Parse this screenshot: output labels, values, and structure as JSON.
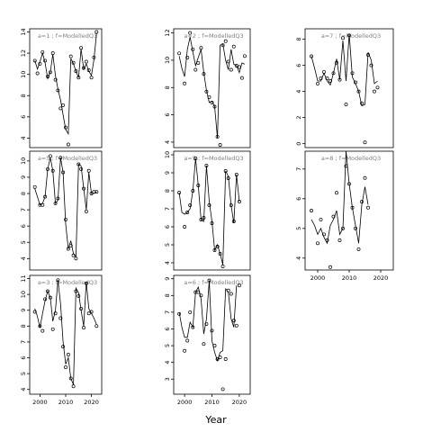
{
  "figure": {
    "xlabel": "Year"
  },
  "chart_data": [
    {
      "type": "line",
      "title": "a=1 ; f=ModelledQ3",
      "xlim": [
        1996,
        2024
      ],
      "ylim": [
        3.1,
        14.3
      ],
      "yticks": [
        4,
        6,
        8,
        10,
        12,
        14
      ],
      "xticks": [],
      "x": [
        1998,
        1999,
        2000,
        2001,
        2002,
        2003,
        2004,
        2005,
        2006,
        2007,
        2008,
        2009,
        2010,
        2011,
        2012,
        2013,
        2014,
        2015,
        2016,
        2017,
        2018,
        2019,
        2020,
        2021,
        2022
      ],
      "series": [
        {
          "style": "line",
          "values": [
            11.3,
            10.5,
            11.2,
            12.0,
            11.1,
            9.6,
            10.2,
            11.9,
            9.9,
            8.6,
            7.6,
            6.2,
            4.8,
            4.4,
            11.5,
            11.0,
            10.3,
            9.7,
            12.4,
            10.5,
            11.0,
            10.3,
            9.9,
            11.4,
            13.9
          ]
        },
        {
          "style": "points",
          "values": [
            11.3,
            10.1,
            11.0,
            12.1,
            11.3,
            9.8,
            10.2,
            12.0,
            9.5,
            8.5,
            6.8,
            7.1,
            5.0,
            3.4,
            11.7,
            11.1,
            10.3,
            9.7,
            12.5,
            10.6,
            11.2,
            10.4,
            9.7,
            11.6,
            14.0
          ]
        }
      ]
    },
    {
      "type": "line",
      "title": "a=2 ; f=ModelledQ3",
      "xlim": [
        1996,
        2024
      ],
      "ylim": [
        3.6,
        12.3
      ],
      "yticks": [
        4,
        6,
        8,
        10,
        12
      ],
      "xticks": [],
      "x": [
        1998,
        1999,
        2000,
        2001,
        2002,
        2003,
        2004,
        2005,
        2006,
        2007,
        2008,
        2009,
        2010,
        2011,
        2012,
        2013,
        2014,
        2015,
        2016,
        2017,
        2018,
        2019,
        2020,
        2021,
        2022
      ],
      "series": [
        {
          "style": "line",
          "values": [
            10.3,
            9.4,
            8.8,
            10.8,
            11.7,
            10.6,
            9.6,
            10.2,
            10.8,
            9.1,
            7.8,
            6.9,
            7.0,
            6.6,
            4.3,
            11.1,
            11.2,
            10.0,
            9.3,
            10.8,
            9.7,
            9.6,
            9.1,
            9.8,
            9.7
          ]
        },
        {
          "style": "points",
          "values": [
            10.5,
            null,
            8.3,
            10.2,
            12.0,
            10.8,
            9.3,
            9.8,
            10.9,
            9.0,
            7.7,
            7.3,
            6.9,
            6.6,
            4.4,
            3.8,
            11.1,
            11.4,
            9.9,
            9.3,
            11.0,
            9.6,
            9.5,
            8.7,
            10.3
          ]
        }
      ]
    },
    {
      "type": "line",
      "title": "a=3 ; f=ModelledQ3",
      "xlim": [
        1996,
        2024
      ],
      "ylim": [
        3.7,
        11.2
      ],
      "yticks": [
        4,
        5,
        6,
        7,
        8,
        9,
        10,
        11
      ],
      "xticks": [
        2000,
        2010,
        2020
      ],
      "x": [
        1998,
        1999,
        2000,
        2001,
        2002,
        2003,
        2004,
        2005,
        2006,
        2007,
        2008,
        2009,
        2010,
        2011,
        2012,
        2013,
        2014,
        2015,
        2016,
        2017,
        2018,
        2019,
        2020,
        2021,
        2022
      ],
      "series": [
        {
          "style": "line",
          "values": [
            9.1,
            8.6,
            7.9,
            8.8,
            9.6,
            10.2,
            9.8,
            8.3,
            9.0,
            10.9,
            9.4,
            7.0,
            5.6,
            6.0,
            4.7,
            4.3,
            10.4,
            10.1,
            9.0,
            8.0,
            10.8,
            9.1,
            8.8,
            8.5,
            8.1
          ]
        },
        {
          "style": "points",
          "values": [
            8.9,
            null,
            8.0,
            7.7,
            9.7,
            10.2,
            9.8,
            7.8,
            8.8,
            10.9,
            8.5,
            6.7,
            5.4,
            6.2,
            4.7,
            4.2,
            10.2,
            9.9,
            9.1,
            7.9,
            10.7,
            8.8,
            8.9,
            null,
            8.0
          ]
        }
      ]
    },
    {
      "type": "line",
      "title": "a=5 ; f=ModelledQ3",
      "xlim": [
        1996,
        2024
      ],
      "ylim": [
        3.3,
        10.6
      ],
      "yticks": [
        4,
        5,
        6,
        7,
        8,
        9,
        10
      ],
      "xticks": [],
      "x": [
        1998,
        1999,
        2000,
        2001,
        2002,
        2003,
        2004,
        2005,
        2006,
        2007,
        2008,
        2009,
        2010,
        2011,
        2012,
        2013,
        2014,
        2015,
        2016,
        2017,
        2018,
        2019,
        2020,
        2021,
        2022
      ],
      "series": [
        {
          "style": "line",
          "values": [
            8.3,
            7.8,
            7.3,
            7.4,
            7.8,
            9.5,
            10.2,
            9.4,
            7.4,
            7.6,
            10.2,
            9.3,
            6.1,
            4.6,
            5.1,
            4.3,
            4.1,
            9.8,
            9.7,
            8.3,
            7.0,
            9.3,
            8.0,
            8.0,
            8.1
          ]
        },
        {
          "style": "points",
          "values": [
            8.4,
            null,
            7.3,
            7.3,
            7.8,
            9.5,
            10.3,
            9.4,
            7.4,
            7.7,
            10.2,
            9.3,
            6.4,
            4.6,
            4.8,
            4.2,
            4.0,
            9.8,
            9.5,
            8.3,
            6.9,
            9.4,
            8.0,
            8.1,
            8.1
          ]
        }
      ]
    },
    {
      "type": "line",
      "title": "a=5 ; f=ModelledQ3",
      "xlim": [
        1996,
        2024
      ],
      "ylim": [
        3.6,
        10.2
      ],
      "yticks": [
        4,
        5,
        6,
        7,
        8,
        9,
        10
      ],
      "xticks": [],
      "x": [
        1998,
        1999,
        2000,
        2001,
        2002,
        2003,
        2004,
        2005,
        2006,
        2007,
        2008,
        2009,
        2010,
        2011,
        2012,
        2013,
        2014,
        2015,
        2016,
        2017,
        2018,
        2019,
        2020,
        2021,
        2022
      ],
      "series": [
        {
          "style": "line",
          "values": [
            7.9,
            6.8,
            6.7,
            6.8,
            7.0,
            8.0,
            9.8,
            8.3,
            6.4,
            6.3,
            9.4,
            7.4,
            6.3,
            4.7,
            5.0,
            4.5,
            3.9,
            9.1,
            8.8,
            7.2,
            6.2,
            8.9,
            7.4,
            null,
            null
          ]
        },
        {
          "style": "points",
          "values": [
            7.9,
            null,
            6.0,
            6.8,
            7.2,
            8.0,
            9.8,
            8.3,
            6.4,
            6.5,
            9.4,
            7.2,
            6.2,
            4.7,
            4.9,
            4.5,
            3.8,
            9.1,
            8.7,
            7.2,
            6.3,
            8.9,
            7.4,
            null,
            null
          ]
        }
      ]
    },
    {
      "type": "line",
      "title": "a=6 ; f=ModelledQ3",
      "xlim": [
        1996,
        2024
      ],
      "ylim": [
        2.1,
        9.2
      ],
      "yticks": [
        3,
        4,
        5,
        6,
        7,
        8,
        9
      ],
      "xticks": [
        2000,
        2010,
        2020
      ],
      "x": [
        1998,
        1999,
        2000,
        2001,
        2002,
        2003,
        2004,
        2005,
        2006,
        2007,
        2008,
        2009,
        2010,
        2011,
        2012,
        2013,
        2014,
        2015,
        2016,
        2017,
        2018,
        2019,
        2020,
        2021,
        2022
      ],
      "series": [
        {
          "style": "line",
          "values": [
            7.0,
            6.1,
            5.5,
            5.5,
            6.4,
            6.1,
            8.2,
            8.5,
            7.8,
            5.7,
            6.6,
            8.9,
            5.3,
            4.6,
            4.1,
            4.6,
            4.7,
            8.4,
            8.2,
            6.6,
            6.1,
            8.6,
            null,
            null,
            null
          ]
        },
        {
          "style": "points",
          "values": [
            6.9,
            null,
            4.7,
            5.3,
            7.0,
            6.1,
            8.2,
            8.2,
            8.0,
            5.1,
            6.3,
            8.9,
            5.9,
            5.0,
            4.2,
            4.3,
            2.4,
            4.2,
            8.3,
            8.1,
            6.5,
            6.2,
            8.6,
            null,
            null
          ]
        }
      ]
    },
    {
      "type": "line",
      "title": "a=7 ; f=ModelledQ3",
      "xlim": [
        1996,
        2024
      ],
      "ylim": [
        -0.3,
        8.8
      ],
      "yticks": [
        0,
        2,
        4,
        6,
        8
      ],
      "xticks": [],
      "x": [
        1998,
        1999,
        2000,
        2001,
        2002,
        2003,
        2004,
        2005,
        2006,
        2007,
        2008,
        2009,
        2010,
        2011,
        2012,
        2013,
        2014,
        2015,
        2016,
        2017,
        2018,
        2019,
        2020,
        2021,
        2022
      ],
      "series": [
        {
          "style": "line",
          "values": [
            6.7,
            5.8,
            4.8,
            4.8,
            5.4,
            4.8,
            4.5,
            5.4,
            6.5,
            4.9,
            7.9,
            4.8,
            8.4,
            5.1,
            4.6,
            4.0,
            2.9,
            3.0,
            7.0,
            6.4,
            4.6,
            4.8,
            null,
            null,
            null
          ]
        },
        {
          "style": "points",
          "values": [
            6.7,
            null,
            4.6,
            5.0,
            5.5,
            5.0,
            4.8,
            5.4,
            6.2,
            4.9,
            8.1,
            3.0,
            8.3,
            5.4,
            4.7,
            4.0,
            3.1,
            0.1,
            6.8,
            6.0,
            4.0,
            4.3,
            null,
            null,
            null
          ]
        }
      ]
    },
    {
      "type": "line",
      "title": "a=8 ; f=ModelledQ3",
      "xlim": [
        1996,
        2024
      ],
      "ylim": [
        3.6,
        7.6
      ],
      "yticks": [
        4,
        5,
        6,
        7
      ],
      "xticks": [
        2000,
        2010,
        2020
      ],
      "x": [
        1998,
        1999,
        2000,
        2001,
        2002,
        2003,
        2004,
        2005,
        2006,
        2007,
        2008,
        2009,
        2010,
        2011,
        2012,
        2013,
        2014,
        2015,
        2016,
        2017,
        2018,
        2019,
        2020,
        2021,
        2022
      ],
      "series": [
        {
          "style": "line",
          "values": [
            5.3,
            5.1,
            4.8,
            5.0,
            4.7,
            4.5,
            5.1,
            5.3,
            5.6,
            4.8,
            5.0,
            7.6,
            6.5,
            5.7,
            5.1,
            4.5,
            5.8,
            6.4,
            5.8,
            null,
            null,
            null,
            null,
            null,
            null
          ]
        },
        {
          "style": "points",
          "values": [
            5.6,
            null,
            4.5,
            5.3,
            4.8,
            4.6,
            3.7,
            5.4,
            6.2,
            4.6,
            5.0,
            7.1,
            6.5,
            5.7,
            5.0,
            4.3,
            5.9,
            6.7,
            5.7,
            null,
            null,
            null,
            null,
            null,
            null
          ]
        }
      ]
    }
  ]
}
